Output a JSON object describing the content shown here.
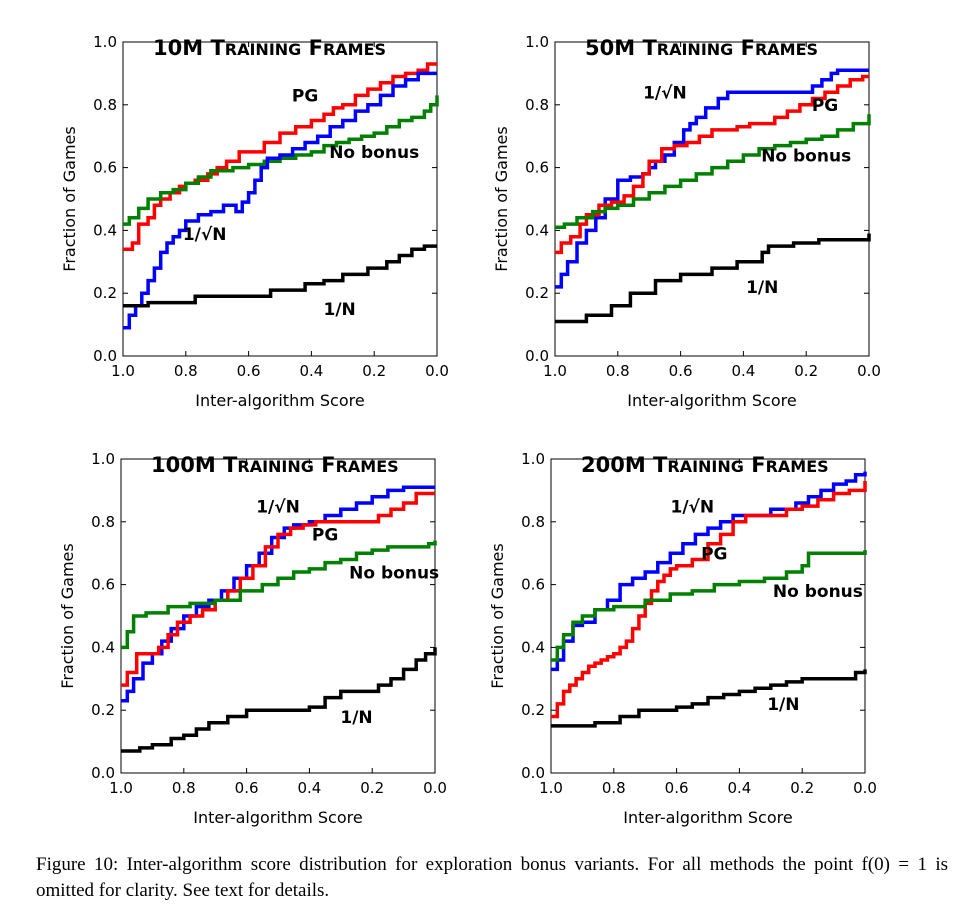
{
  "chart_data": [
    {
      "type": "line",
      "title": "10M Training Frames",
      "xlabel": "Inter-algorithm Score",
      "ylabel": "Fraction of Games",
      "xlim": [
        1.0,
        0.0
      ],
      "ylim": [
        0.0,
        1.0
      ],
      "xticks": [
        "1.0",
        "0.8",
        "0.6",
        "0.4",
        "0.2",
        "0.0"
      ],
      "yticks": [
        "0.0",
        "0.2",
        "0.4",
        "0.6",
        "0.8",
        "1.0"
      ],
      "series": [
        {
          "name": "PG",
          "color": "#ff0000",
          "label_at": [
            0.42,
            0.81
          ],
          "x": [
            1.0,
            0.97,
            0.95,
            0.92,
            0.9,
            0.88,
            0.85,
            0.82,
            0.8,
            0.77,
            0.73,
            0.7,
            0.67,
            0.63,
            0.58,
            0.55,
            0.5,
            0.45,
            0.4,
            0.36,
            0.33,
            0.3,
            0.26,
            0.22,
            0.18,
            0.14,
            0.1,
            0.06,
            0.03,
            0.0
          ],
          "y": [
            0.34,
            0.36,
            0.42,
            0.44,
            0.48,
            0.5,
            0.52,
            0.54,
            0.55,
            0.56,
            0.58,
            0.6,
            0.62,
            0.65,
            0.65,
            0.68,
            0.71,
            0.73,
            0.75,
            0.77,
            0.79,
            0.8,
            0.83,
            0.85,
            0.87,
            0.89,
            0.9,
            0.91,
            0.93,
            0.93
          ]
        },
        {
          "name": "No bonus",
          "color": "#008000",
          "label_at": [
            0.2,
            0.63
          ],
          "x": [
            1.0,
            0.98,
            0.95,
            0.92,
            0.88,
            0.84,
            0.8,
            0.76,
            0.72,
            0.65,
            0.6,
            0.55,
            0.5,
            0.45,
            0.4,
            0.36,
            0.32,
            0.28,
            0.24,
            0.2,
            0.16,
            0.12,
            0.08,
            0.04,
            0.02,
            0.0
          ],
          "y": [
            0.42,
            0.44,
            0.47,
            0.5,
            0.52,
            0.53,
            0.55,
            0.57,
            0.59,
            0.6,
            0.61,
            0.62,
            0.63,
            0.64,
            0.65,
            0.67,
            0.68,
            0.69,
            0.7,
            0.71,
            0.73,
            0.75,
            0.76,
            0.78,
            0.8,
            0.83
          ]
        },
        {
          "name": "1/√N",
          "color": "#0000ff",
          "label_at": [
            0.74,
            0.37
          ],
          "x": [
            1.0,
            0.98,
            0.96,
            0.94,
            0.92,
            0.9,
            0.88,
            0.86,
            0.84,
            0.82,
            0.8,
            0.76,
            0.72,
            0.68,
            0.64,
            0.62,
            0.6,
            0.58,
            0.56,
            0.54,
            0.5,
            0.46,
            0.42,
            0.38,
            0.34,
            0.3,
            0.26,
            0.22,
            0.18,
            0.14,
            0.1,
            0.06,
            0.02,
            0.0
          ],
          "y": [
            0.09,
            0.13,
            0.16,
            0.2,
            0.24,
            0.28,
            0.33,
            0.36,
            0.38,
            0.4,
            0.43,
            0.45,
            0.46,
            0.48,
            0.46,
            0.49,
            0.52,
            0.56,
            0.6,
            0.63,
            0.64,
            0.66,
            0.68,
            0.7,
            0.73,
            0.75,
            0.78,
            0.8,
            0.83,
            0.86,
            0.88,
            0.9,
            0.9,
            0.9
          ]
        },
        {
          "name": "1/N",
          "color": "#000000",
          "label_at": [
            0.31,
            0.13
          ],
          "x": [
            1.0,
            0.92,
            0.77,
            0.53,
            0.42,
            0.36,
            0.3,
            0.22,
            0.16,
            0.12,
            0.08,
            0.04,
            0.0
          ],
          "y": [
            0.16,
            0.17,
            0.19,
            0.21,
            0.23,
            0.24,
            0.26,
            0.28,
            0.3,
            0.32,
            0.34,
            0.35,
            0.35
          ]
        }
      ]
    },
    {
      "type": "line",
      "title": "50M Training Frames",
      "xlabel": "Inter-algorithm Score",
      "ylabel": "Fraction of Games",
      "xlim": [
        1.0,
        0.0
      ],
      "ylim": [
        0.0,
        1.0
      ],
      "xticks": [
        "1.0",
        "0.8",
        "0.6",
        "0.4",
        "0.2",
        "0.0"
      ],
      "yticks": [
        "0.0",
        "0.2",
        "0.4",
        "0.6",
        "0.8",
        "1.0"
      ],
      "series": [
        {
          "name": "1/√N",
          "color": "#0000ff",
          "label_at": [
            0.65,
            0.82
          ],
          "x": [
            1.0,
            0.98,
            0.96,
            0.93,
            0.9,
            0.87,
            0.84,
            0.8,
            0.76,
            0.72,
            0.7,
            0.68,
            0.65,
            0.62,
            0.59,
            0.57,
            0.55,
            0.52,
            0.48,
            0.45,
            0.4,
            0.35,
            0.3,
            0.25,
            0.2,
            0.18,
            0.15,
            0.12,
            0.1,
            0.05,
            0.0
          ],
          "y": [
            0.22,
            0.26,
            0.3,
            0.36,
            0.4,
            0.44,
            0.5,
            0.56,
            0.57,
            0.58,
            0.6,
            0.62,
            0.64,
            0.68,
            0.72,
            0.74,
            0.76,
            0.79,
            0.82,
            0.84,
            0.84,
            0.84,
            0.84,
            0.84,
            0.84,
            0.86,
            0.88,
            0.9,
            0.91,
            0.91,
            0.91
          ]
        },
        {
          "name": "PG",
          "color": "#ff0000",
          "label_at": [
            0.14,
            0.78
          ],
          "x": [
            1.0,
            0.98,
            0.95,
            0.92,
            0.9,
            0.86,
            0.82,
            0.78,
            0.75,
            0.72,
            0.7,
            0.66,
            0.62,
            0.58,
            0.54,
            0.5,
            0.46,
            0.42,
            0.38,
            0.34,
            0.3,
            0.26,
            0.22,
            0.18,
            0.14,
            0.1,
            0.06,
            0.02,
            0.0
          ],
          "y": [
            0.33,
            0.36,
            0.38,
            0.42,
            0.45,
            0.48,
            0.49,
            0.51,
            0.54,
            0.58,
            0.62,
            0.66,
            0.67,
            0.68,
            0.7,
            0.72,
            0.72,
            0.73,
            0.74,
            0.74,
            0.76,
            0.78,
            0.8,
            0.82,
            0.84,
            0.86,
            0.88,
            0.89,
            0.89
          ]
        },
        {
          "name": "No bonus",
          "color": "#008000",
          "label_at": [
            0.2,
            0.62
          ],
          "x": [
            1.0,
            0.97,
            0.93,
            0.88,
            0.84,
            0.8,
            0.75,
            0.7,
            0.65,
            0.6,
            0.55,
            0.5,
            0.45,
            0.4,
            0.35,
            0.3,
            0.25,
            0.2,
            0.15,
            0.1,
            0.05,
            0.0
          ],
          "y": [
            0.41,
            0.42,
            0.44,
            0.46,
            0.47,
            0.48,
            0.5,
            0.52,
            0.54,
            0.56,
            0.58,
            0.6,
            0.62,
            0.64,
            0.66,
            0.67,
            0.68,
            0.69,
            0.7,
            0.72,
            0.74,
            0.77
          ]
        },
        {
          "name": "1/N",
          "color": "#000000",
          "label_at": [
            0.34,
            0.2
          ],
          "x": [
            1.0,
            0.9,
            0.82,
            0.76,
            0.68,
            0.6,
            0.5,
            0.42,
            0.34,
            0.32,
            0.24,
            0.16,
            0.08,
            0.0
          ],
          "y": [
            0.11,
            0.13,
            0.16,
            0.2,
            0.24,
            0.26,
            0.28,
            0.3,
            0.33,
            0.35,
            0.36,
            0.37,
            0.37,
            0.39
          ]
        }
      ]
    },
    {
      "type": "line",
      "title": "100M Training Frames",
      "xlabel": "Inter-algorithm Score",
      "ylabel": "Fraction of Games",
      "xlim": [
        1.0,
        0.0
      ],
      "ylim": [
        0.0,
        1.0
      ],
      "xticks": [
        "1.0",
        "0.8",
        "0.6",
        "0.4",
        "0.2",
        "0.0"
      ],
      "yticks": [
        "0.0",
        "0.2",
        "0.4",
        "0.6",
        "0.8",
        "1.0"
      ],
      "series": [
        {
          "name": "1/√N",
          "color": "#0000ff",
          "label_at": [
            0.5,
            0.83
          ],
          "x": [
            1.0,
            0.98,
            0.96,
            0.93,
            0.9,
            0.87,
            0.84,
            0.8,
            0.76,
            0.72,
            0.68,
            0.64,
            0.6,
            0.56,
            0.52,
            0.48,
            0.45,
            0.4,
            0.35,
            0.3,
            0.25,
            0.2,
            0.15,
            0.1,
            0.05,
            0.0
          ],
          "y": [
            0.23,
            0.26,
            0.3,
            0.35,
            0.38,
            0.42,
            0.46,
            0.5,
            0.53,
            0.55,
            0.58,
            0.62,
            0.66,
            0.7,
            0.75,
            0.78,
            0.79,
            0.8,
            0.82,
            0.84,
            0.86,
            0.88,
            0.9,
            0.91,
            0.91,
            0.91
          ]
        },
        {
          "name": "PG",
          "color": "#ff0000",
          "label_at": [
            0.35,
            0.74
          ],
          "x": [
            1.0,
            0.98,
            0.95,
            0.92,
            0.88,
            0.85,
            0.82,
            0.78,
            0.74,
            0.7,
            0.66,
            0.62,
            0.58,
            0.54,
            0.5,
            0.46,
            0.42,
            0.38,
            0.34,
            0.3,
            0.26,
            0.22,
            0.18,
            0.14,
            0.1,
            0.06,
            0.0
          ],
          "y": [
            0.28,
            0.32,
            0.38,
            0.38,
            0.4,
            0.44,
            0.48,
            0.5,
            0.52,
            0.55,
            0.58,
            0.62,
            0.66,
            0.72,
            0.76,
            0.78,
            0.79,
            0.8,
            0.8,
            0.8,
            0.8,
            0.8,
            0.82,
            0.84,
            0.86,
            0.89,
            0.89
          ]
        },
        {
          "name": "No bonus",
          "color": "#008000",
          "label_at": [
            0.13,
            0.62
          ],
          "x": [
            1.0,
            0.98,
            0.96,
            0.92,
            0.85,
            0.78,
            0.7,
            0.62,
            0.55,
            0.5,
            0.45,
            0.4,
            0.35,
            0.3,
            0.25,
            0.2,
            0.15,
            0.1,
            0.05,
            0.02,
            0.0
          ],
          "y": [
            0.4,
            0.45,
            0.5,
            0.51,
            0.53,
            0.54,
            0.55,
            0.58,
            0.6,
            0.62,
            0.64,
            0.65,
            0.67,
            0.68,
            0.7,
            0.71,
            0.72,
            0.72,
            0.72,
            0.73,
            0.74
          ]
        },
        {
          "name": "1/N",
          "color": "#000000",
          "label_at": [
            0.25,
            0.16
          ],
          "x": [
            1.0,
            0.94,
            0.9,
            0.84,
            0.8,
            0.76,
            0.72,
            0.66,
            0.6,
            0.5,
            0.4,
            0.35,
            0.3,
            0.24,
            0.18,
            0.14,
            0.1,
            0.06,
            0.03,
            0.0
          ],
          "y": [
            0.07,
            0.08,
            0.09,
            0.11,
            0.12,
            0.14,
            0.16,
            0.18,
            0.2,
            0.2,
            0.21,
            0.24,
            0.26,
            0.26,
            0.28,
            0.3,
            0.33,
            0.36,
            0.38,
            0.4
          ]
        }
      ]
    },
    {
      "type": "line",
      "title": "200M Training Frames",
      "xlabel": "Inter-algorithm Score",
      "ylabel": "Fraction of Games",
      "xlim": [
        1.0,
        0.0
      ],
      "ylim": [
        0.0,
        1.0
      ],
      "xticks": [
        "1.0",
        "0.8",
        "0.6",
        "0.4",
        "0.2",
        "0.0"
      ],
      "yticks": [
        "0.0",
        "0.2",
        "0.4",
        "0.6",
        "0.8",
        "1.0"
      ],
      "series": [
        {
          "name": "1/√N",
          "color": "#0000ff",
          "label_at": [
            0.55,
            0.83
          ],
          "x": [
            1.0,
            0.98,
            0.96,
            0.93,
            0.9,
            0.86,
            0.82,
            0.78,
            0.74,
            0.7,
            0.66,
            0.62,
            0.58,
            0.54,
            0.5,
            0.46,
            0.42,
            0.38,
            0.34,
            0.3,
            0.26,
            0.22,
            0.18,
            0.14,
            0.1,
            0.06,
            0.03,
            0.0
          ],
          "y": [
            0.33,
            0.36,
            0.42,
            0.47,
            0.48,
            0.52,
            0.55,
            0.6,
            0.62,
            0.64,
            0.67,
            0.7,
            0.73,
            0.76,
            0.78,
            0.8,
            0.82,
            0.82,
            0.82,
            0.84,
            0.84,
            0.86,
            0.88,
            0.9,
            0.92,
            0.93,
            0.95,
            0.96
          ]
        },
        {
          "name": "PG",
          "color": "#ff0000",
          "label_at": [
            0.48,
            0.68
          ],
          "x": [
            1.0,
            0.98,
            0.96,
            0.94,
            0.92,
            0.9,
            0.88,
            0.86,
            0.84,
            0.82,
            0.8,
            0.78,
            0.76,
            0.74,
            0.72,
            0.7,
            0.68,
            0.66,
            0.64,
            0.62,
            0.6,
            0.55,
            0.5,
            0.46,
            0.42,
            0.38,
            0.34,
            0.3,
            0.25,
            0.2,
            0.15,
            0.1,
            0.05,
            0.0
          ],
          "y": [
            0.18,
            0.22,
            0.26,
            0.28,
            0.3,
            0.32,
            0.34,
            0.35,
            0.36,
            0.37,
            0.38,
            0.4,
            0.42,
            0.46,
            0.5,
            0.54,
            0.58,
            0.61,
            0.63,
            0.65,
            0.66,
            0.68,
            0.73,
            0.76,
            0.8,
            0.82,
            0.82,
            0.82,
            0.84,
            0.85,
            0.87,
            0.89,
            0.9,
            0.93
          ]
        },
        {
          "name": "No bonus",
          "color": "#008000",
          "label_at": [
            0.15,
            0.56
          ],
          "x": [
            1.0,
            0.98,
            0.96,
            0.93,
            0.9,
            0.86,
            0.8,
            0.7,
            0.62,
            0.55,
            0.48,
            0.4,
            0.32,
            0.25,
            0.2,
            0.18,
            0.1,
            0.05,
            0.0
          ],
          "y": [
            0.36,
            0.4,
            0.44,
            0.48,
            0.5,
            0.52,
            0.53,
            0.55,
            0.57,
            0.58,
            0.6,
            0.61,
            0.62,
            0.64,
            0.66,
            0.7,
            0.7,
            0.7,
            0.71
          ]
        },
        {
          "name": "1/N",
          "color": "#000000",
          "label_at": [
            0.26,
            0.2
          ],
          "x": [
            1.0,
            0.86,
            0.78,
            0.72,
            0.66,
            0.6,
            0.55,
            0.5,
            0.45,
            0.4,
            0.35,
            0.3,
            0.25,
            0.2,
            0.15,
            0.1,
            0.06,
            0.03,
            0.0
          ],
          "y": [
            0.15,
            0.16,
            0.18,
            0.2,
            0.2,
            0.21,
            0.22,
            0.24,
            0.25,
            0.26,
            0.27,
            0.28,
            0.29,
            0.3,
            0.3,
            0.3,
            0.3,
            0.32,
            0.33
          ]
        }
      ]
    }
  ],
  "caption": {
    "text": "Figure 10: Inter-algorithm score distribution for exploration bonus variants. For all methods the point f(0) = 1 is omitted for clarity. See text for details."
  }
}
